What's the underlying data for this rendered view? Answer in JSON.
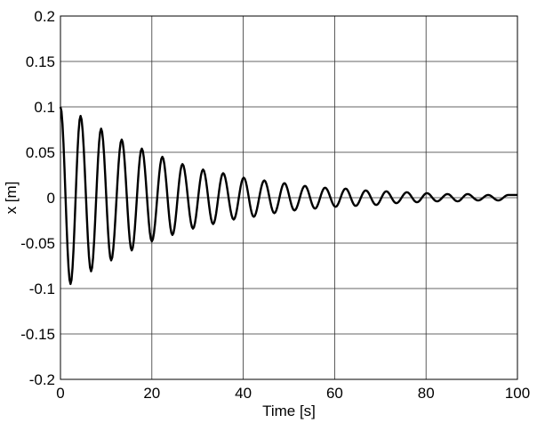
{
  "chart_data": {
    "type": "line",
    "title": "",
    "xlabel": "Time [s]",
    "ylabel": "x [m]",
    "xlim": [
      0,
      100
    ],
    "ylim": [
      -0.2,
      0.2
    ],
    "grid": true,
    "xticks": [
      0,
      20,
      40,
      60,
      80,
      100
    ],
    "xtick_labels": [
      "0",
      "20",
      "40",
      "60",
      "80",
      "100"
    ],
    "yticks": [
      0.2,
      0.15,
      0.1,
      0.05,
      0,
      -0.05,
      -0.1,
      -0.15,
      -0.2
    ],
    "ytick_labels": [
      "0.2",
      "0.15",
      "0.1",
      "0.05",
      "0",
      "-0.05",
      "-0.1",
      "-0.15",
      "-0.2"
    ],
    "series": [
      {
        "color": "#000000",
        "x": [
          0,
          2.2,
          4.4,
          6.7,
          8.9,
          11.1,
          13.4,
          15.6,
          17.8,
          20.0,
          22.3,
          24.5,
          26.7,
          29.0,
          31.2,
          33.4,
          35.6,
          37.9,
          40.1,
          42.3,
          44.6,
          46.8,
          49.0,
          51.2,
          53.5,
          55.7,
          57.9,
          60.2,
          62.4,
          64.6,
          66.8,
          69.1,
          71.3,
          73.5,
          75.8,
          78.0,
          80.2,
          82.4,
          84.7,
          86.9,
          89.1,
          91.4,
          93.6,
          95.8,
          98.0,
          100.0
        ],
        "y": [
          0.1,
          -0.095,
          0.09,
          -0.081,
          0.076,
          -0.069,
          0.064,
          -0.058,
          0.054,
          -0.048,
          0.045,
          -0.041,
          0.037,
          -0.034,
          0.031,
          -0.029,
          0.027,
          -0.024,
          0.022,
          -0.021,
          0.019,
          -0.017,
          0.016,
          -0.014,
          0.013,
          -0.012,
          0.011,
          -0.01,
          0.01,
          -0.009,
          0.008,
          -0.008,
          0.007,
          -0.006,
          0.006,
          -0.005,
          0.005,
          -0.004,
          0.004,
          -0.004,
          0.004,
          -0.003,
          0.003,
          -0.003,
          0.003,
          0.003
        ]
      }
    ]
  }
}
